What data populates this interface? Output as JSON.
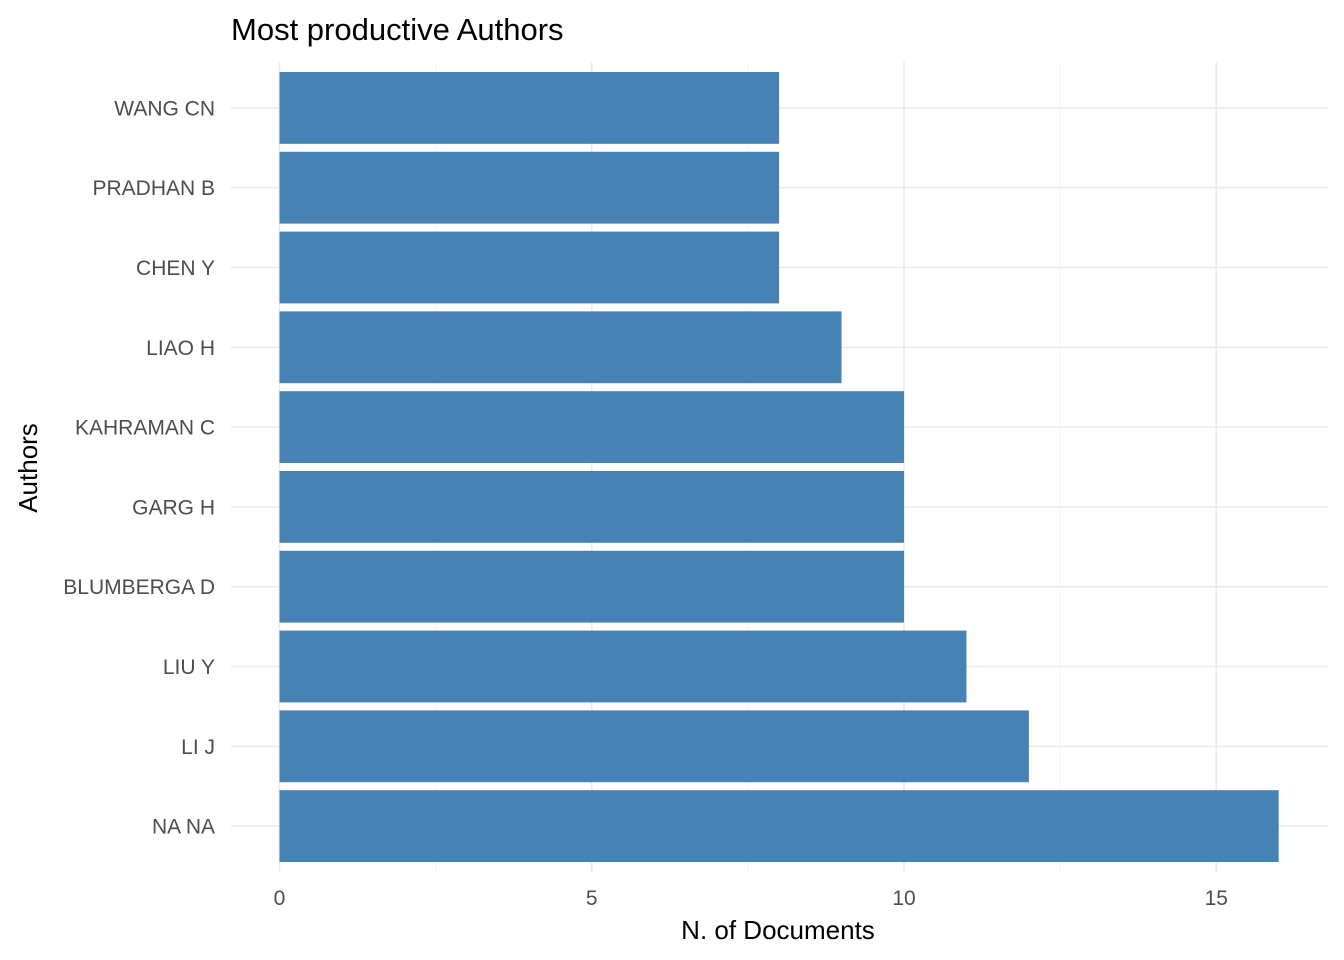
{
  "chart_data": {
    "type": "bar",
    "orientation": "horizontal",
    "title": "Most productive Authors",
    "xlabel": "N. of Documents",
    "ylabel": "Authors",
    "categories": [
      "NA NA",
      "LI J",
      "LIU Y",
      "BLUMBERGA D",
      "GARG H",
      "KAHRAMAN C",
      "LIAO H",
      "CHEN Y",
      "PRADHAN B",
      "WANG CN"
    ],
    "values": [
      16,
      12,
      11,
      10,
      10,
      10,
      9,
      8,
      8,
      8
    ],
    "xticks": [
      "0",
      "5",
      "10",
      "15"
    ],
    "xlim": [
      0,
      16.8
    ],
    "grid": true,
    "bar_color": "#4682b4"
  }
}
